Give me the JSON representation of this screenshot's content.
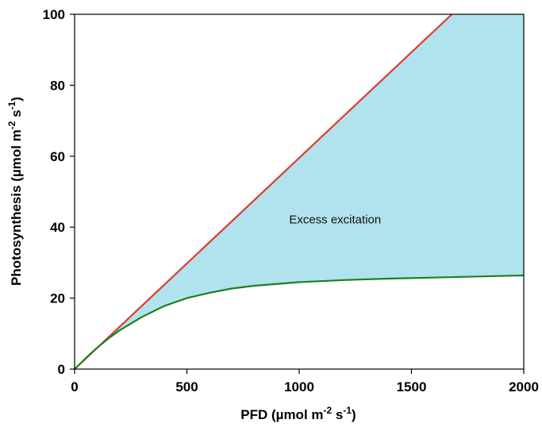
{
  "chart_data": {
    "type": "line",
    "xlabel": {
      "prefix": "PFD  (µmol m",
      "sup1": "-2",
      "mid": " s",
      "sup2": "-1",
      "suffix": ")"
    },
    "ylabel": {
      "prefix": "Photosynthesis (µmol m",
      "sup1": "-2",
      "mid": " s",
      "sup2": "-1",
      "suffix": ")"
    },
    "xlim": [
      0,
      2000
    ],
    "ylim": [
      0,
      100
    ],
    "xticks": [
      0,
      500,
      1000,
      1500,
      2000
    ],
    "yticks": [
      0,
      20,
      40,
      60,
      80,
      100
    ],
    "grid": false,
    "legend": "none",
    "annotation": {
      "text": "Excess excitation",
      "x": 1160,
      "y": 41
    },
    "series": [
      {
        "color": "#e03a2f",
        "x": [
          0,
          1680
        ],
        "y": [
          0,
          100
        ]
      },
      {
        "color": "#1f7f1f",
        "x": [
          0,
          50,
          100,
          150,
          200,
          300,
          400,
          500,
          600,
          700,
          800,
          1000,
          1200,
          1400,
          1600,
          1800,
          2000
        ],
        "y": [
          0,
          3.1,
          6.0,
          8.6,
          10.9,
          14.7,
          17.8,
          20.0,
          21.5,
          22.7,
          23.5,
          24.5,
          25.1,
          25.5,
          25.8,
          26.1,
          26.4
        ]
      }
    ],
    "fill_between": {
      "color": "#b1e3ef",
      "label": "Excess excitation"
    }
  }
}
